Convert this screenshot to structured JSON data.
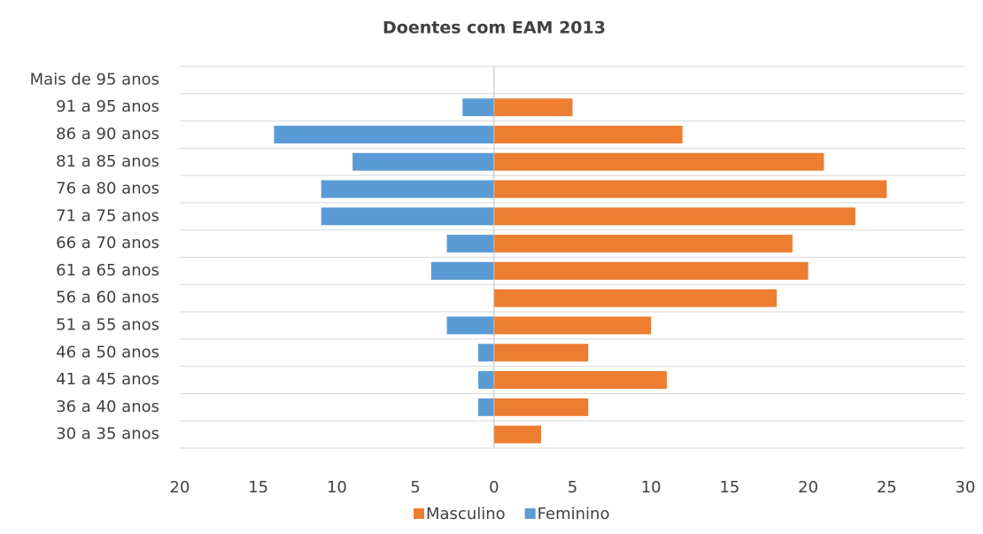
{
  "chart_data": {
    "type": "bar",
    "orientation": "horizontal",
    "title": "Doentes com EAM 2013",
    "categories": [
      "Mais de 95 anos",
      "91 a 95 anos",
      "86 a 90 anos",
      "81 a 85 anos",
      "76 a 80 anos",
      "71 a 75 anos",
      "66 a 70 anos",
      "61 a 65 anos",
      "56 a 60 anos",
      "51 a 55 anos",
      "46 a 50 anos",
      "41 a 45 anos",
      "36 a 40 anos",
      "30 a 35 anos"
    ],
    "series": [
      {
        "name": "Masculino",
        "color": "#ed7d31",
        "values": [
          0,
          5,
          12,
          21,
          25,
          23,
          19,
          20,
          18,
          10,
          6,
          11,
          6,
          3
        ]
      },
      {
        "name": "Feminino",
        "color": "#5b9bd5",
        "values": [
          0,
          -2,
          -14,
          -9,
          -11,
          -11,
          -3,
          -4,
          0,
          -3,
          -1,
          -1,
          -1,
          0
        ]
      }
    ],
    "xlim": [
      -20,
      30
    ],
    "xticks": [
      {
        "value": -20,
        "label": "20"
      },
      {
        "value": -15,
        "label": "15"
      },
      {
        "value": -10,
        "label": "10"
      },
      {
        "value": -5,
        "label": "5"
      },
      0,
      5,
      10,
      15,
      20,
      25,
      30
    ],
    "legend": "bottom"
  }
}
